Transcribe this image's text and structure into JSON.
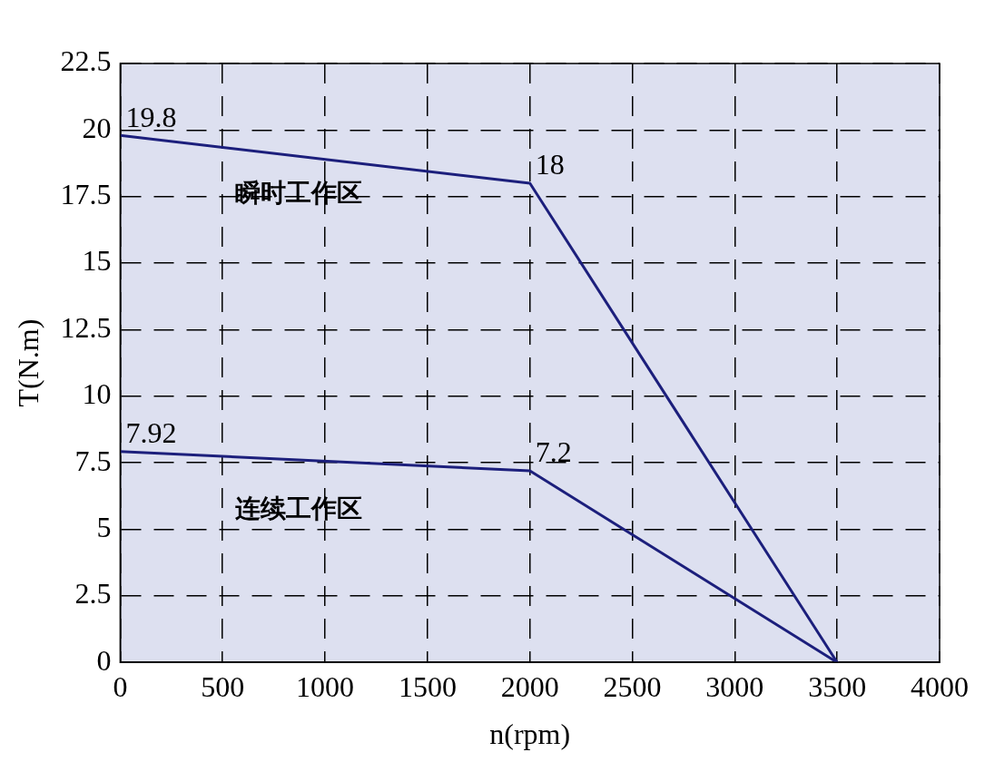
{
  "chart_data": {
    "type": "line",
    "xlabel": "n(rpm)",
    "ylabel": "T(N.m)",
    "x": [
      0,
      2000,
      3500
    ],
    "series": [
      {
        "color": "#1c1f7c",
        "values": [
          19.8,
          18,
          0
        ],
        "value_labels": [
          "19.8",
          "18",
          null
        ]
      },
      {
        "color": "#1c1f7c",
        "values": [
          7.92,
          7.2,
          0
        ],
        "value_labels": [
          "7.92",
          "7.2",
          null
        ]
      }
    ],
    "xlim": [
      0,
      4000
    ],
    "xticks": [
      0,
      500,
      1000,
      1500,
      2000,
      2500,
      3000,
      3500,
      4000
    ],
    "ylim": [
      0,
      22.5
    ],
    "yticks": [
      0,
      2.5,
      5,
      7.5,
      10,
      12.5,
      15,
      17.5,
      20,
      22.5
    ],
    "annotations": [
      "瞬时工作区",
      "连续工作区"
    ],
    "grid": true,
    "line_style": "solid",
    "marker": "none",
    "legend": false
  }
}
